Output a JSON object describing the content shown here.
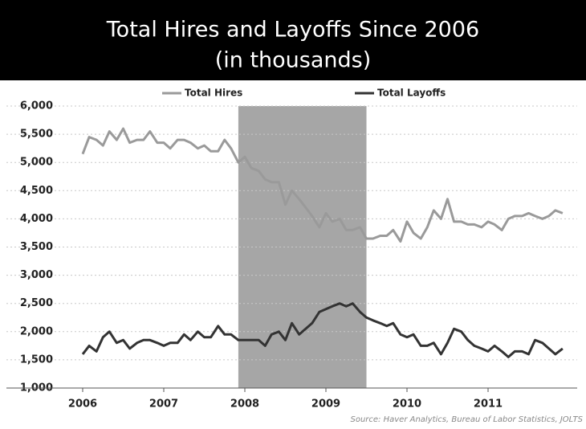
{
  "chart_data": {
    "type": "line",
    "title": "Total Hires and Layoffs Since 2006",
    "subtitle": "(in thousands)",
    "source": "Source: Haver Analytics, Bureau of Labor Statistics, JOLTS",
    "x": [
      2006,
      2006.08,
      2006.17,
      2006.25,
      2006.33,
      2006.42,
      2006.5,
      2006.58,
      2006.67,
      2006.75,
      2006.83,
      2006.92,
      2007,
      2007.08,
      2007.17,
      2007.25,
      2007.33,
      2007.42,
      2007.5,
      2007.58,
      2007.67,
      2007.75,
      2007.83,
      2007.92,
      2008,
      2008.08,
      2008.17,
      2008.25,
      2008.33,
      2008.42,
      2008.5,
      2008.58,
      2008.67,
      2008.75,
      2008.83,
      2008.92,
      2009,
      2009.08,
      2009.17,
      2009.25,
      2009.33,
      2009.42,
      2009.5,
      2009.58,
      2009.67,
      2009.75,
      2009.83,
      2009.92,
      2010,
      2010.08,
      2010.17,
      2010.25,
      2010.33,
      2010.42,
      2010.5,
      2010.58,
      2010.67,
      2010.75,
      2010.83,
      2010.92,
      2011,
      2011.08,
      2011.17,
      2011.25,
      2011.33,
      2011.42,
      2011.5,
      2011.58,
      2011.67,
      2011.75,
      2011.83,
      2011.92
    ],
    "series": [
      {
        "name": "Total Hires",
        "color": "#9a9a9a",
        "values": [
          5150,
          5450,
          5400,
          5300,
          5550,
          5400,
          5600,
          5350,
          5400,
          5400,
          5550,
          5350,
          5350,
          5250,
          5400,
          5400,
          5350,
          5250,
          5300,
          5200,
          5200,
          5400,
          5250,
          5000,
          5100,
          4900,
          4850,
          4700,
          4650,
          4650,
          4250,
          4500,
          4350,
          4200,
          4050,
          3850,
          4100,
          3950,
          4000,
          3800,
          3800,
          3850,
          3650,
          3650,
          3700,
          3700,
          3800,
          3600,
          3950,
          3750,
          3650,
          3850,
          4150,
          4000,
          4350,
          3950,
          3950,
          3900,
          3900,
          3850,
          3950,
          3900,
          3800,
          4000,
          4050,
          4050,
          4100,
          4050,
          4000,
          4050,
          4150,
          4100
        ]
      },
      {
        "name": "Total Layoffs",
        "color": "#333333",
        "values": [
          1600,
          1750,
          1650,
          1900,
          2000,
          1800,
          1850,
          1700,
          1800,
          1850,
          1850,
          1800,
          1750,
          1800,
          1800,
          1950,
          1850,
          2000,
          1900,
          1900,
          2100,
          1950,
          1950,
          1850,
          1850,
          1850,
          1850,
          1750,
          1950,
          2000,
          1850,
          2150,
          1950,
          2050,
          2150,
          2350,
          2400,
          2450,
          2500,
          2450,
          2500,
          2350,
          2250,
          2200,
          2150,
          2100,
          2150,
          1950,
          1900,
          1950,
          1750,
          1750,
          1800,
          1600,
          1800,
          2050,
          2000,
          1850,
          1750,
          1700,
          1650,
          1750,
          1650,
          1550,
          1650,
          1650,
          1600,
          1850,
          1800,
          1700,
          1600,
          1700
        ]
      }
    ],
    "shaded_region": [
      2007.92,
      2009.5
    ],
    "shaded_color": "#a6a6a6",
    "xlim": [
      2006,
      2012
    ],
    "xticks": [
      2006,
      2007,
      2008,
      2009,
      2010,
      2011
    ],
    "ylim": [
      1000,
      6000
    ],
    "yticks": [
      {
        "value": 1000,
        "label": "1,000"
      },
      {
        "value": 1500,
        "label": "1,500"
      },
      {
        "value": 2000,
        "label": "2,000"
      },
      {
        "value": 2500,
        "label": "2,500"
      },
      {
        "value": 3000,
        "label": "3,000"
      },
      {
        "value": 3500,
        "label": "3,500"
      },
      {
        "value": 4000,
        "label": "4,000"
      },
      {
        "value": 4500,
        "label": "4,500"
      },
      {
        "value": 5000,
        "label": "5,000"
      },
      {
        "value": 5500,
        "label": "5,500"
      },
      {
        "value": 6000,
        "label": "6,000"
      }
    ],
    "grid": true,
    "legend": "top"
  }
}
